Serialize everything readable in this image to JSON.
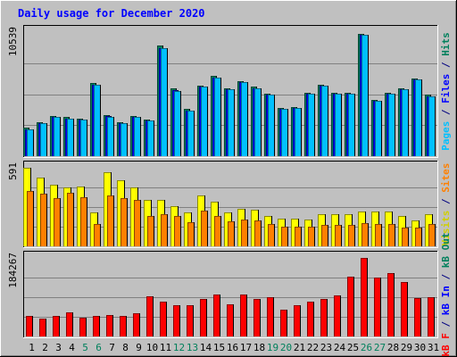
{
  "chart_data": {
    "type": "bar",
    "title": "Daily usage for December 2020",
    "categories": [
      "1",
      "2",
      "3",
      "4",
      "5",
      "6",
      "7",
      "8",
      "9",
      "10",
      "11",
      "12",
      "13",
      "14",
      "15",
      "16",
      "17",
      "18",
      "19",
      "20",
      "21",
      "22",
      "23",
      "24",
      "25",
      "26",
      "27",
      "28",
      "29",
      "30",
      "31"
    ],
    "weekend_days": [
      "5",
      "6",
      "12",
      "13",
      "19",
      "20",
      "26",
      "27"
    ],
    "panels": [
      {
        "name": "pages-files-hits",
        "ymax_label": "10539",
        "ymax": 10539,
        "side_labels": [
          {
            "text": "Pages",
            "color": "#00c0ff"
          },
          {
            "text": " / ",
            "color": "#000080"
          },
          {
            "text": "Files",
            "color": "#0000ff"
          },
          {
            "text": " / ",
            "color": "#000080"
          },
          {
            "text": "Hits",
            "color": "#00805c"
          }
        ],
        "series": [
          {
            "name": "Hits",
            "color": "#00805c",
            "values": [
              2400,
              2900,
              3400,
              3300,
              3200,
              6200,
              3500,
              2900,
              3400,
              3100,
              9400,
              5800,
              4000,
              6000,
              6800,
              5800,
              6400,
              5900,
              5300,
              4100,
              4200,
              5400,
              6100,
              5400,
              5400,
              10400,
              4800,
              5400,
              5800,
              6600,
              5200
            ]
          },
          {
            "name": "Files",
            "color": "#0000ff",
            "values": [
              2300,
              2800,
              3300,
              3200,
              3100,
              6100,
              3400,
              2800,
              3300,
              3000,
              9200,
              5600,
              3900,
              5900,
              6700,
              5700,
              6300,
              5800,
              5200,
              4000,
              4100,
              5300,
              6000,
              5300,
              5300,
              10300,
              4700,
              5300,
              5700,
              6500,
              5100
            ]
          },
          {
            "name": "Pages",
            "color": "#00c0ff",
            "values": [
              2300,
              2800,
              3300,
              3200,
              3100,
              6100,
              3300,
              2800,
              3300,
              3000,
              9200,
              5500,
              3900,
              5900,
              6700,
              5700,
              6300,
              5800,
              5200,
              4000,
              4100,
              5300,
              6000,
              5300,
              5300,
              10300,
              4700,
              5300,
              5700,
              6500,
              5100
            ]
          }
        ]
      },
      {
        "name": "visits-sites",
        "ymax_label": "591",
        "ymax": 591,
        "side_labels": [
          {
            "text": "Visits",
            "color": "#d0d000"
          },
          {
            "text": " / ",
            "color": "#000080"
          },
          {
            "text": "Sites",
            "color": "#ff8000"
          }
        ],
        "series": [
          {
            "name": "Visits",
            "color": "#ffff00",
            "values": [
              591,
              520,
              465,
              445,
              450,
              255,
              560,
              500,
              445,
              350,
              350,
              305,
              255,
              385,
              335,
              255,
              285,
              275,
              230,
              210,
              205,
              200,
              245,
              245,
              245,
              265,
              265,
              265,
              230,
              195,
              245
            ]
          },
          {
            "name": "Sites",
            "color": "#ff8000",
            "values": [
              415,
              395,
              360,
              400,
              370,
              170,
              385,
              365,
              350,
              225,
              240,
              225,
              180,
              270,
              225,
              190,
              200,
              195,
              165,
              145,
              150,
              150,
              160,
              160,
              160,
              175,
              170,
              170,
              140,
              140,
              170
            ]
          }
        ]
      },
      {
        "name": "kbytes",
        "ymax_label": "184267",
        "ymax": 184267,
        "side_labels": [
          {
            "text": "kB F",
            "color": "#ff0000"
          },
          {
            "text": " / ",
            "color": "#000080"
          },
          {
            "text": "kB In",
            "color": "#0000ff"
          },
          {
            "text": " / ",
            "color": "#000080"
          },
          {
            "text": "kB Out",
            "color": "#00805c"
          }
        ],
        "series": [
          {
            "name": "kB F",
            "color": "#ff0000",
            "values": [
              48000,
              42000,
              49000,
              57000,
              44000,
              48000,
              51000,
              48000,
              54000,
              94000,
              82000,
              74000,
              74000,
              88000,
              98000,
              75000,
              98000,
              88000,
              92000,
              62000,
              74000,
              82000,
              87000,
              97000,
              140000,
              184267,
              138000,
              149000,
              128000,
              90000,
              92000
            ]
          }
        ]
      }
    ]
  }
}
